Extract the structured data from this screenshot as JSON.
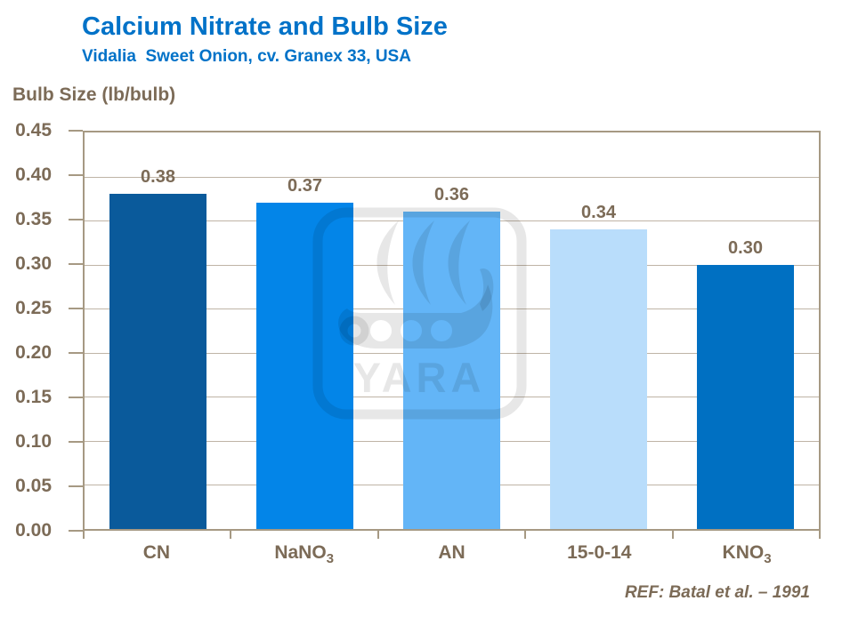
{
  "header": {
    "title": "Calcium Nitrate and Bulb Size",
    "subtitle": "Vidalia  Sweet Onion, cv. Granex 33, USA"
  },
  "footer": {
    "reference": "REF: Batal et al. – 1991"
  },
  "watermark": {
    "brand_text": "YARA",
    "icon": "yara-viking-ship-logo"
  },
  "colors": {
    "title_blue": "#0072C8",
    "body_text_brown": "#7C6B57",
    "plot_border": "#A69983",
    "gridline": "#BFB4A6",
    "background": "#FFFFFF"
  },
  "chart_data": {
    "type": "bar",
    "title": "Calcium Nitrate and Bulb Size",
    "subtitle": "Vidalia  Sweet Onion, cv. Granex 33, USA",
    "ylabel": "Bulb Size (lb/bulb)",
    "xlabel": "",
    "categories": [
      "CN",
      "NaNO₃",
      "AN",
      "15-0-14",
      "KNO₃"
    ],
    "values": [
      0.38,
      0.37,
      0.36,
      0.34,
      0.3
    ],
    "value_labels": [
      "0.38",
      "0.37",
      "0.36",
      "0.34",
      "0.30"
    ],
    "bar_colors": [
      "#0A5A9B",
      "#0385E8",
      "#63B5F7",
      "#B9DDFB",
      "#0070C2"
    ],
    "ylim": [
      0,
      0.45
    ],
    "ytick_step": 0.05,
    "yticks": [
      "0.45",
      "0.40",
      "0.35",
      "0.30",
      "0.25",
      "0.20",
      "0.15",
      "0.10",
      "0.05",
      "0.00"
    ],
    "grid": true,
    "legend_position": "none",
    "annotation": "REF: Batal et al. – 1991"
  }
}
